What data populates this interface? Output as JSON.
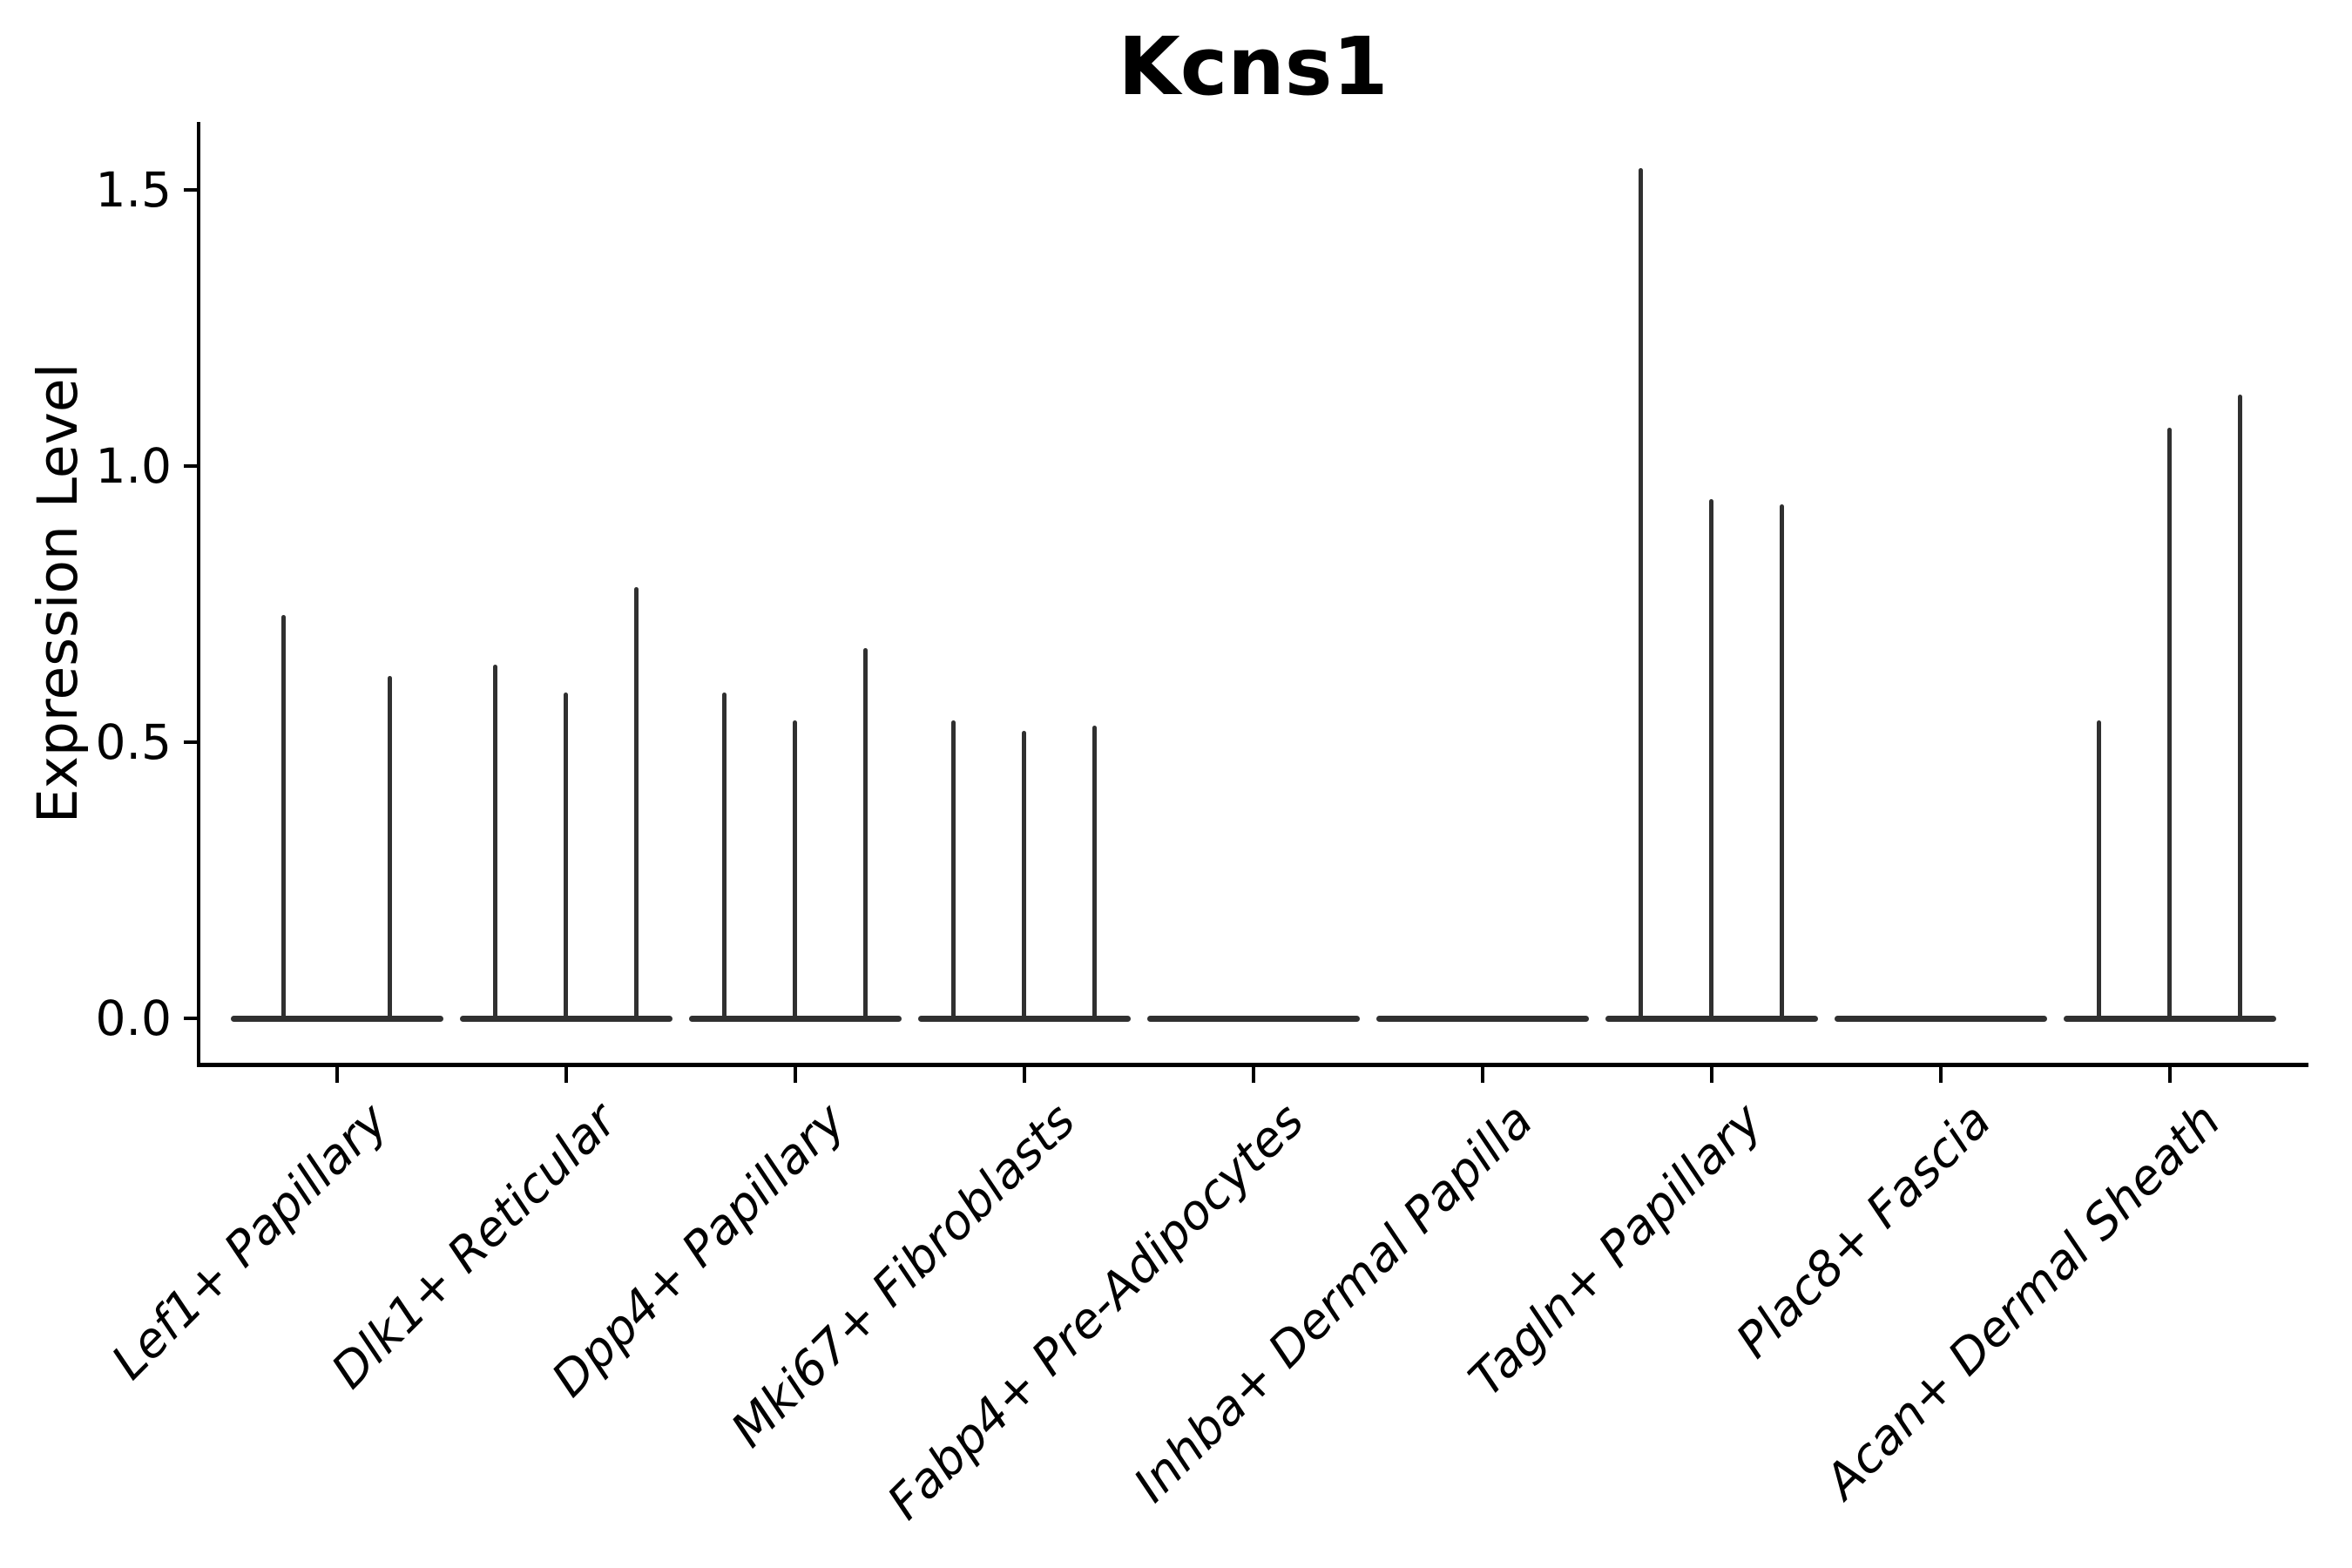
{
  "chart_data": {
    "type": "violin",
    "title": "Kcns1",
    "ylabel": "Expression Level",
    "xlabel": "",
    "ylim": [
      0,
      1.62
    ],
    "yticks": [
      0.0,
      0.5,
      1.0,
      1.5
    ],
    "ytick_labels": [
      "0.0",
      "0.5",
      "1.0",
      "1.5"
    ],
    "grid": false,
    "legend": false,
    "categories": [
      "Lef1+ Papillary",
      "Dlk1+ Reticular",
      "Dpp4+ Papillary",
      "Mki67+ Fibroblasts",
      "Fabp4+ Pre-Adipocytes",
      "Inhba+ Dermal Papilla",
      "Tagln+ Papillary",
      "Plac8+ Fascia",
      "Acan+ Dermal Sheath"
    ],
    "series": [
      {
        "category": "Lef1+ Papillary",
        "violin_maxima": [
          0.73,
          0.62
        ]
      },
      {
        "category": "Dlk1+ Reticular",
        "violin_maxima": [
          0.64,
          0.59,
          0.78
        ]
      },
      {
        "category": "Dpp4+ Papillary",
        "violin_maxima": [
          0.59,
          0.54,
          0.67
        ]
      },
      {
        "category": "Mki67+ Fibroblasts",
        "violin_maxima": [
          0.54,
          0.52,
          0.53
        ]
      },
      {
        "category": "Fabp4+ Pre-Adipocytes",
        "violin_maxima": []
      },
      {
        "category": "Inhba+ Dermal Papilla",
        "violin_maxima": []
      },
      {
        "category": "Tagln+ Papillary",
        "violin_maxima": [
          1.54,
          0.94,
          0.93
        ]
      },
      {
        "category": "Plac8+ Fascia",
        "violin_maxima": []
      },
      {
        "category": "Acan+ Dermal Sheath",
        "violin_maxima": [
          0.54,
          1.07,
          1.13
        ]
      }
    ],
    "colors": {
      "violin": "#303030",
      "axis": "#000000",
      "text": "#000000",
      "background": "#ffffff"
    }
  }
}
